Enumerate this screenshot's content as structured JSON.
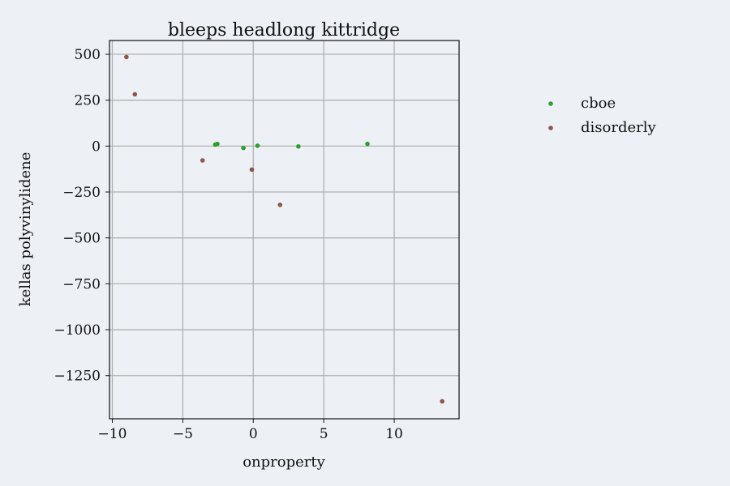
{
  "chart_data": {
    "type": "scatter",
    "title": "bleeps headlong kittridge",
    "xlabel": "onproperty",
    "ylabel": "kellas polyvinylidene",
    "xlim": [
      -10.2,
      14.6
    ],
    "ylim": [
      -1485,
      575
    ],
    "grid": true,
    "legend_position": "right",
    "xticks": [
      {
        "value": -10,
        "label": "−10"
      },
      {
        "value": -5,
        "label": "−5"
      },
      {
        "value": 0,
        "label": "0"
      },
      {
        "value": 5,
        "label": "5"
      },
      {
        "value": 10,
        "label": "10"
      }
    ],
    "yticks": [
      {
        "value": 500,
        "label": "500"
      },
      {
        "value": 250,
        "label": "250"
      },
      {
        "value": 0,
        "label": "0"
      },
      {
        "value": -250,
        "label": "−250"
      },
      {
        "value": -500,
        "label": "−500"
      },
      {
        "value": -750,
        "label": "−750"
      },
      {
        "value": -1000,
        "label": "−1000"
      },
      {
        "value": -1250,
        "label": "−1250"
      }
    ],
    "series": [
      {
        "name": "cboe",
        "color": "#2ca02c",
        "points": [
          {
            "x": -2.7,
            "y": 8
          },
          {
            "x": -2.55,
            "y": 12
          },
          {
            "x": -0.7,
            "y": -10
          },
          {
            "x": 0.3,
            "y": 2
          },
          {
            "x": 3.2,
            "y": -2
          },
          {
            "x": 8.1,
            "y": 12
          }
        ]
      },
      {
        "name": "disorderly",
        "color": "#8c564b",
        "points": [
          {
            "x": -9.0,
            "y": 485
          },
          {
            "x": -8.4,
            "y": 282
          },
          {
            "x": -3.6,
            "y": -78
          },
          {
            "x": -0.1,
            "y": -128
          },
          {
            "x": 1.9,
            "y": -320
          },
          {
            "x": 13.4,
            "y": -1390
          }
        ]
      }
    ]
  }
}
